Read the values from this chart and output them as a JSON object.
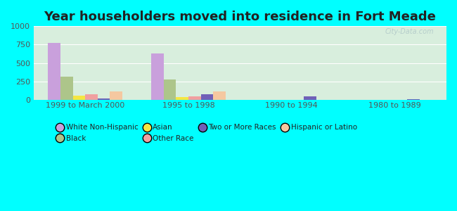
{
  "title": "Year householders moved into residence in Fort Meade",
  "categories": [
    "1999 to March 2000",
    "1995 to 1998",
    "1990 to 1994",
    "1980 to 1989"
  ],
  "series": {
    "White Non-Hispanic": [
      775,
      635,
      0,
      0
    ],
    "Black": [
      310,
      280,
      0,
      0
    ],
    "Asian": [
      55,
      35,
      0,
      0
    ],
    "Other Race": [
      80,
      50,
      0,
      0
    ],
    "Two or More Races": [
      18,
      75,
      50,
      12
    ],
    "Hispanic or Latino": [
      115,
      110,
      0,
      0
    ]
  },
  "colors": {
    "White Non-Hispanic": "#c9a0dc",
    "Black": "#adc58a",
    "Asian": "#f5e642",
    "Other Race": "#f0a0a0",
    "Two or More Races": "#7060b8",
    "Hispanic or Latino": "#f5c8a0"
  },
  "ylim": [
    0,
    1000
  ],
  "yticks": [
    0,
    250,
    500,
    750,
    1000
  ],
  "outer_bg": "#00ffff",
  "plot_bg": "#d8eedd",
  "watermark": "City-Data.com",
  "title_fontsize": 13,
  "legend_row1": [
    "White Non-Hispanic",
    "Black",
    "Asian",
    "Other Race"
  ],
  "legend_row2": [
    "Two or More Races",
    "Hispanic or Latino"
  ]
}
